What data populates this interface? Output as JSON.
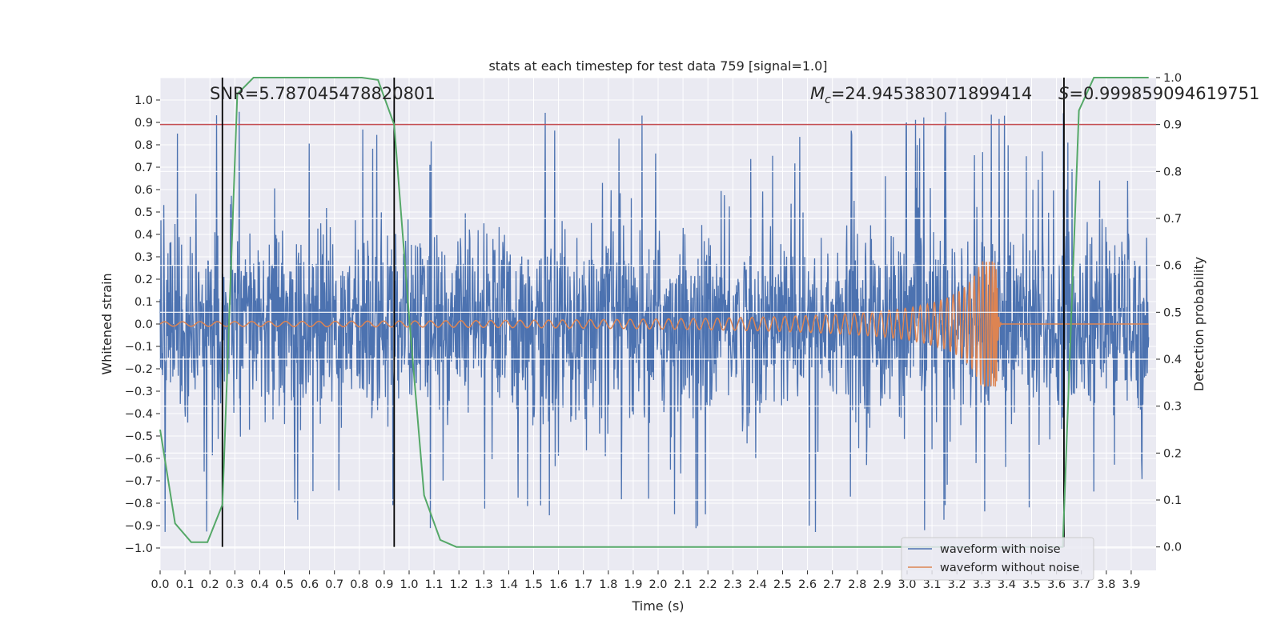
{
  "chart_data": {
    "type": "line",
    "title": "stats at each timestep for test data 759 [signal=1.0]",
    "xlabel": "Time (s)",
    "ylabel": "Whitened strain",
    "ylabel_right": "Detection probability",
    "xlim": [
      0.0,
      4.0
    ],
    "ylim": [
      -1.1,
      1.1
    ],
    "ylim_right": [
      -0.05,
      1.0
    ],
    "x_ticks": [
      0.0,
      0.1,
      0.2,
      0.3,
      0.4,
      0.5,
      0.6,
      0.7,
      0.8,
      0.9,
      1.0,
      1.1,
      1.2,
      1.3,
      1.4,
      1.5,
      1.6,
      1.7,
      1.8,
      1.9,
      2.0,
      2.1,
      2.2,
      2.3,
      2.4,
      2.5,
      2.6,
      2.7,
      2.8,
      2.9,
      3.0,
      3.1,
      3.2,
      3.3,
      3.4,
      3.5,
      3.6,
      3.7,
      3.8,
      3.9
    ],
    "x_tick_labels": [
      "0.0",
      "0.1",
      "0.2",
      "0.3",
      "0.4",
      "0.5",
      "0.6",
      "0.7",
      "0.8",
      "0.9",
      "1.0",
      "1.1",
      "1.2",
      "1.3",
      "1.4",
      "1.5",
      "1.6",
      "1.7",
      "1.8",
      "1.9",
      "2.0",
      "2.1",
      "2.2",
      "2.3",
      "2.4",
      "2.5",
      "2.6",
      "2.7",
      "2.8",
      "2.9",
      "3.0",
      "3.1",
      "3.2",
      "3.3",
      "3.4",
      "3.5",
      "3.6",
      "3.7",
      "3.8",
      "3.9"
    ],
    "y_ticks": [
      1.0,
      0.9,
      0.8,
      0.7,
      0.6,
      0.5,
      0.4,
      0.3,
      0.2,
      0.1,
      0.0,
      -0.1,
      -0.2,
      -0.3,
      -0.4,
      -0.5,
      -0.6,
      -0.7,
      -0.8,
      -0.9,
      -1.0
    ],
    "y_tick_labels": [
      "1.0",
      "0.9",
      "0.8",
      "0.7",
      "0.6",
      "0.5",
      "0.4",
      "0.3",
      "0.2",
      "0.1",
      "0.0",
      "−0.1",
      "−0.2",
      "−0.3",
      "−0.4",
      "−0.5",
      "−0.6",
      "−0.7",
      "−0.8",
      "−0.9",
      "−1.0"
    ],
    "y_right_ticks": [
      1.0,
      0.9,
      0.8,
      0.7,
      0.6,
      0.5,
      0.4,
      0.3,
      0.2,
      0.1,
      0.0
    ],
    "y_right_tick_labels": [
      "1.0",
      "0.9",
      "0.8",
      "0.7",
      "0.6",
      "0.5",
      "0.4",
      "0.3",
      "0.2",
      "0.1",
      "0.0"
    ],
    "grid": true,
    "legend_position": "bottom-right",
    "legend": [
      {
        "label": "waveform with noise",
        "color": "#4c72b0"
      },
      {
        "label": "waveform without noise",
        "color": "#dd8452"
      }
    ],
    "annotations": {
      "snr": "SNR=5.787045478820801",
      "mc_symbol": "M",
      "mc_sub": "c",
      "mc_value": "=24.945383071899414",
      "s_symbol": "S",
      "s_value": "=0.999859094619751"
    },
    "noisy_waveform": {
      "color": "#4c72b0",
      "amplitude_typical": 0.38,
      "amplitude_peak": 0.95
    },
    "clean_waveform": {
      "color": "#dd8452",
      "merger_time": 3.36,
      "peak_amplitude": 0.28,
      "early_amplitude": 0.01
    },
    "detection_probability": {
      "color": "#55a868",
      "x": [
        0.0,
        0.06,
        0.125,
        0.19,
        0.25,
        0.31,
        0.375,
        0.44,
        0.5,
        0.56,
        0.625,
        0.69,
        0.75,
        0.81,
        0.875,
        0.94,
        1.0,
        1.06,
        1.125,
        1.19,
        1.25,
        3.56,
        3.625,
        3.69,
        3.75,
        3.81,
        3.875,
        3.94,
        3.97
      ],
      "y": [
        0.25,
        0.05,
        0.01,
        0.01,
        0.09,
        0.965,
        1.0,
        1.0,
        1.0,
        1.0,
        1.0,
        1.0,
        1.0,
        1.0,
        0.995,
        0.9,
        0.49,
        0.11,
        0.015,
        0.0,
        0.0,
        0.0,
        0.0,
        0.93,
        1.0,
        1.0,
        1.0,
        1.0,
        1.0
      ]
    },
    "threshold": {
      "value": 0.9,
      "color": "#c44e52"
    },
    "vertical_lines": [
      0.25,
      0.94,
      3.63
    ],
    "vertical_line_color": "#000000"
  }
}
